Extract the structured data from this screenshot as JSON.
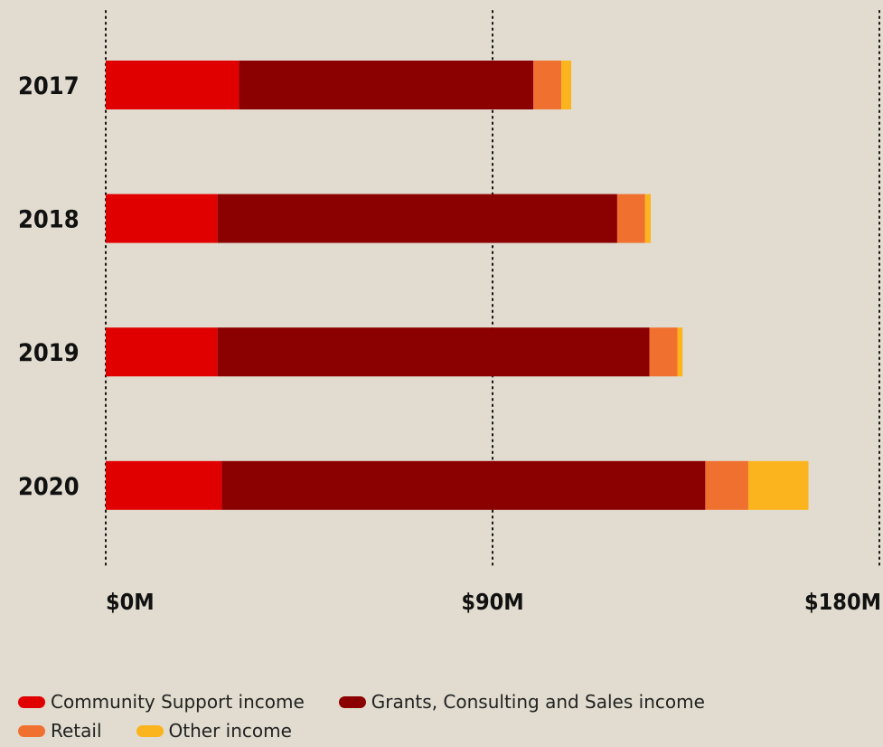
{
  "chart_data": {
    "type": "bar",
    "orientation": "horizontal",
    "stacked": true,
    "categories": [
      "2017",
      "2018",
      "2019",
      "2020"
    ],
    "series": [
      {
        "name": "Community Support income",
        "color": "#e00000",
        "values": [
          31,
          26,
          26,
          27
        ]
      },
      {
        "name": "Grants, Consulting and Sales income",
        "color": "#8b0000",
        "values": [
          68.5,
          93,
          100.5,
          112.5
        ]
      },
      {
        "name": "Retail",
        "color": "#f07030",
        "values": [
          6.5,
          6.5,
          6.5,
          10
        ]
      },
      {
        "name": "Other income",
        "color": "#fbb41e",
        "values": [
          2.3,
          1.3,
          1.2,
          14
        ]
      }
    ],
    "x_ticks": [
      "$0M",
      "$90M",
      "$180M"
    ],
    "tick_values": [
      0,
      90,
      180
    ],
    "xlim": [
      0,
      180
    ],
    "grid": "vertical dotted",
    "legend_position": "bottom"
  },
  "legend_rows": [
    [
      0,
      1
    ],
    [
      2,
      3
    ]
  ]
}
